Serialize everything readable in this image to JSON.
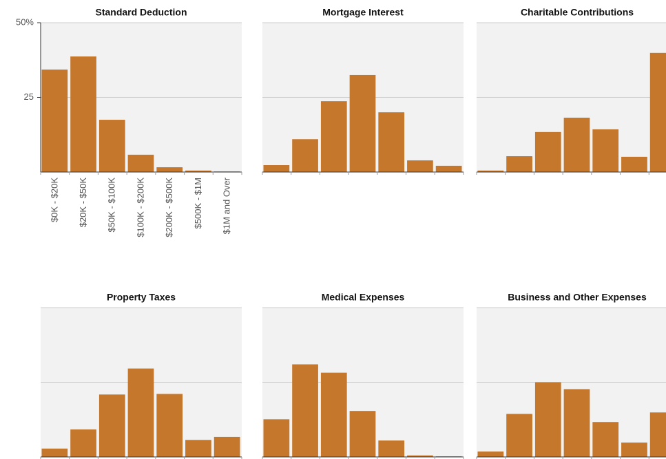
{
  "chart_data": [
    {
      "type": "bar",
      "title": "Standard Deduction",
      "color": "#c5772b",
      "categories": [
        "$0K - $20K",
        "$20K - $50K",
        "$50K - $100K",
        "$100K - $200K",
        "$200K - $500K",
        "$500K - $1M",
        "$1M and Over"
      ],
      "values": [
        34.3,
        38.7,
        17.5,
        5.8,
        1.6,
        0.5,
        0.2
      ],
      "ylim": [
        0,
        50
      ],
      "yticks": [
        {
          "value": 50,
          "label": "50%"
        },
        25
      ]
    },
    {
      "type": "bar",
      "title": "Mortgage Interest",
      "color": "#c5772b",
      "values": [
        2.3,
        11,
        23.7,
        32.5,
        20,
        3.9,
        2.1
      ],
      "ylim": [
        0,
        50
      ],
      "yticks": [
        25,
        50
      ]
    },
    {
      "type": "bar",
      "title": "Charitable Contributions",
      "color": "#c5772b",
      "values": [
        0.5,
        5.3,
        13.4,
        18.2,
        14.3,
        5.1,
        39.9
      ],
      "ylim": [
        0,
        50
      ],
      "yticks": [
        25,
        50
      ]
    },
    {
      "type": "bar",
      "title": "Property Taxes",
      "color": "#c5772b",
      "values": [
        2.8,
        9.2,
        20.9,
        29.6,
        21.1,
        5.7,
        6.7
      ],
      "ylim": [
        0,
        50
      ],
      "yticks": [
        25,
        50
      ]
    },
    {
      "type": "bar",
      "title": "Medical Expenses",
      "color": "#c5772b",
      "values": [
        12.6,
        31,
        28.2,
        15.4,
        5.5,
        0.5,
        0.2
      ],
      "ylim": [
        0,
        50
      ],
      "yticks": [
        25,
        50
      ]
    },
    {
      "type": "bar",
      "title": "Business and Other Expenses",
      "color": "#c5772b",
      "values": [
        1.8,
        14.4,
        25,
        22.7,
        11.7,
        4.8,
        14.9
      ],
      "ylim": [
        0,
        50
      ],
      "yticks": [
        25,
        50
      ]
    }
  ]
}
